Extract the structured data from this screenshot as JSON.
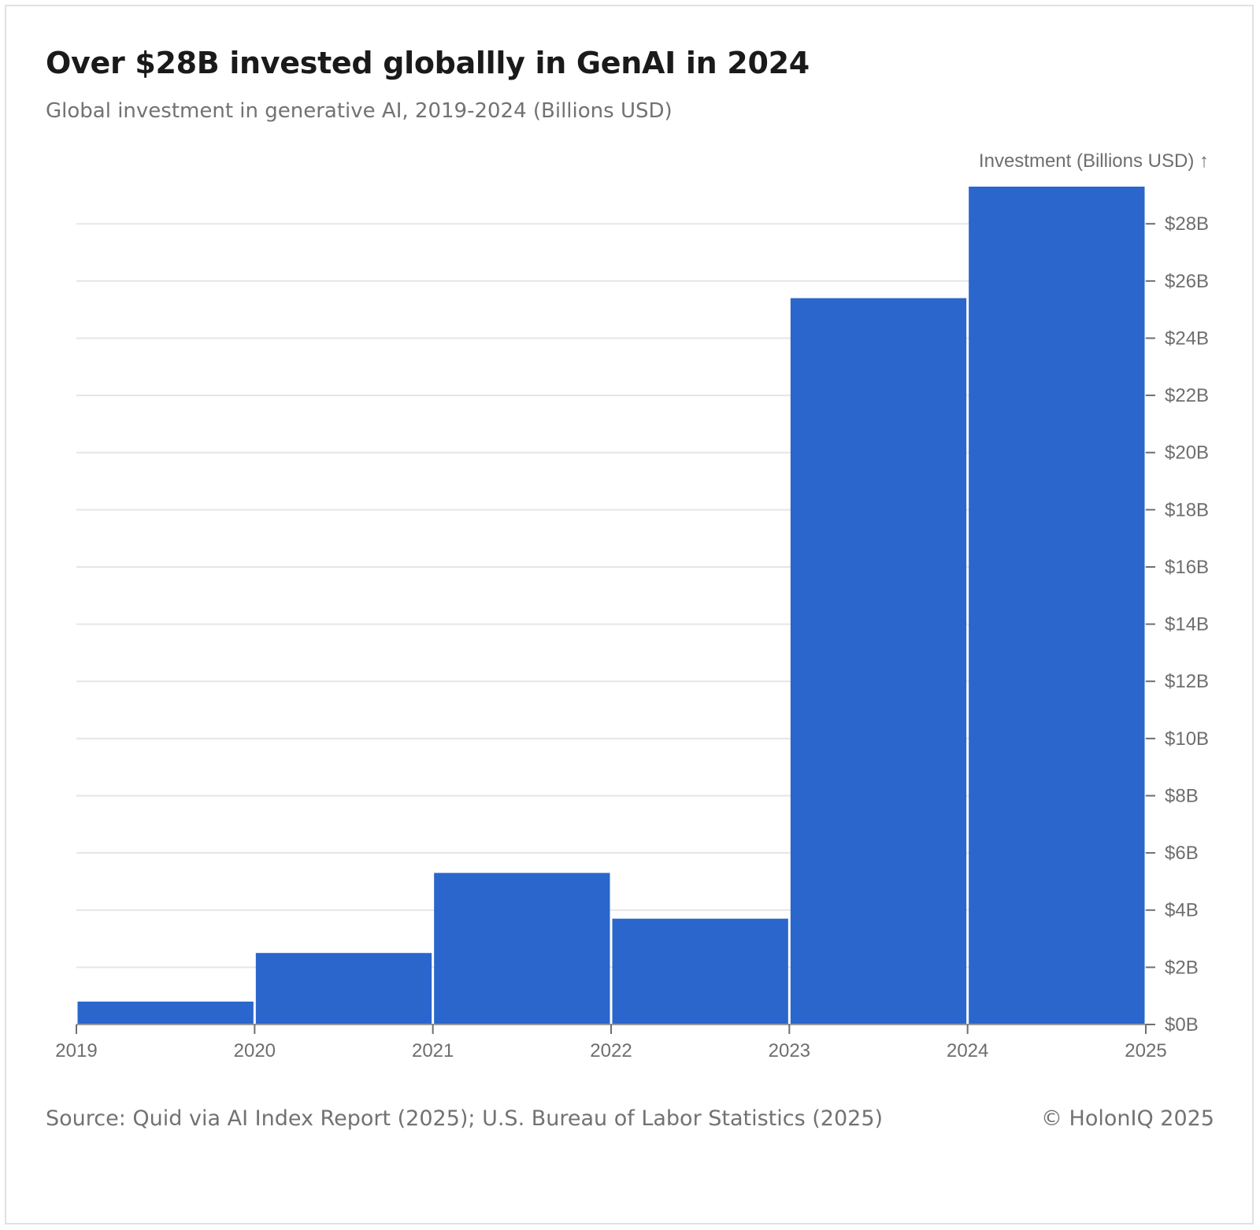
{
  "header": {
    "title": "Over $28B invested globallly in GenAI in 2024",
    "subtitle": "Global investment in generative AI, 2019-2024 (Billions USD)"
  },
  "footer": {
    "source": "Source: Quid via AI Index Report (2025); U.S. Bureau of Labor Statistics (2025)",
    "copyright": "© HolonIQ 2025"
  },
  "colors": {
    "bar": "#2a66cc",
    "grid": "#e6e6e6",
    "axis_text": "#6e6e6e"
  },
  "chart_data": {
    "type": "bar",
    "title": "Over $28B invested globallly in GenAI in 2024",
    "subtitle": "Global investment in generative AI, 2019-2024 (Billions USD)",
    "xlabel": "",
    "ylabel": "Investment (Billions USD) ↑",
    "x_ticks": [
      "2019",
      "2020",
      "2021",
      "2022",
      "2023",
      "2024",
      "2025"
    ],
    "bins": [
      {
        "start": 2019,
        "end": 2020,
        "value": 0.8
      },
      {
        "start": 2020,
        "end": 2021,
        "value": 2.5
      },
      {
        "start": 2021,
        "end": 2022,
        "value": 5.3
      },
      {
        "start": 2022,
        "end": 2023,
        "value": 3.7
      },
      {
        "start": 2023,
        "end": 2024,
        "value": 25.4
      },
      {
        "start": 2024,
        "end": 2025,
        "value": 29.3
      }
    ],
    "y_ticks": [
      0,
      2,
      4,
      6,
      8,
      10,
      12,
      14,
      16,
      18,
      20,
      22,
      24,
      26,
      28
    ],
    "y_tick_labels": [
      "$0B",
      "$2B",
      "$4B",
      "$6B",
      "$8B",
      "$10B",
      "$12B",
      "$14B",
      "$16B",
      "$18B",
      "$20B",
      "$22B",
      "$24B",
      "$26B",
      "$28B"
    ],
    "xlim": [
      2019,
      2025
    ],
    "ylim": [
      0,
      29.3
    ],
    "y_axis_position": "right",
    "grid": true,
    "legend": "none"
  }
}
